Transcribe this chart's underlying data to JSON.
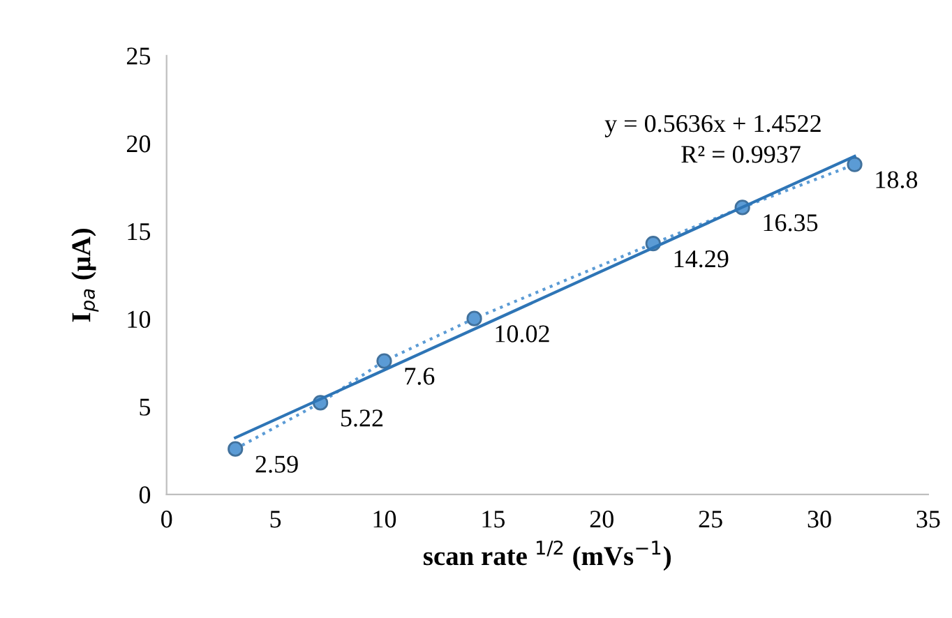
{
  "chart_data": {
    "type": "line",
    "xlabel": "scan rate $^{1/2}$ (mVs$^{−1}$)",
    "ylabel": "I$_{pa}$ (μA)",
    "xlim": [
      0,
      35
    ],
    "xticks": [
      0,
      5,
      10,
      15,
      20,
      25,
      30,
      35
    ],
    "ylim": [
      0,
      25
    ],
    "yticks": [
      0,
      5,
      10,
      15,
      20,
      25
    ],
    "grid": false,
    "legend": false,
    "series": [
      {
        "color": "#5b9bd5",
        "x": [
          3.16,
          7.07,
          10,
          14.14,
          22.36,
          26.46,
          31.62
        ],
        "values": [
          2.59,
          5.22,
          7.6,
          10.02,
          14.29,
          16.35,
          18.8
        ],
        "marker": "circle",
        "line_style": "dotted",
        "data_labels": true
      },
      {
        "color": "#2e75b6",
        "x": [
          3.16,
          31.62
        ],
        "values": [
          3.23,
          19.27
        ],
        "marker": "none",
        "line_style": "solid"
      }
    ],
    "annotations": [
      "y = 0.5636x + 1.4522",
      "R² = 0.9937"
    ]
  }
}
